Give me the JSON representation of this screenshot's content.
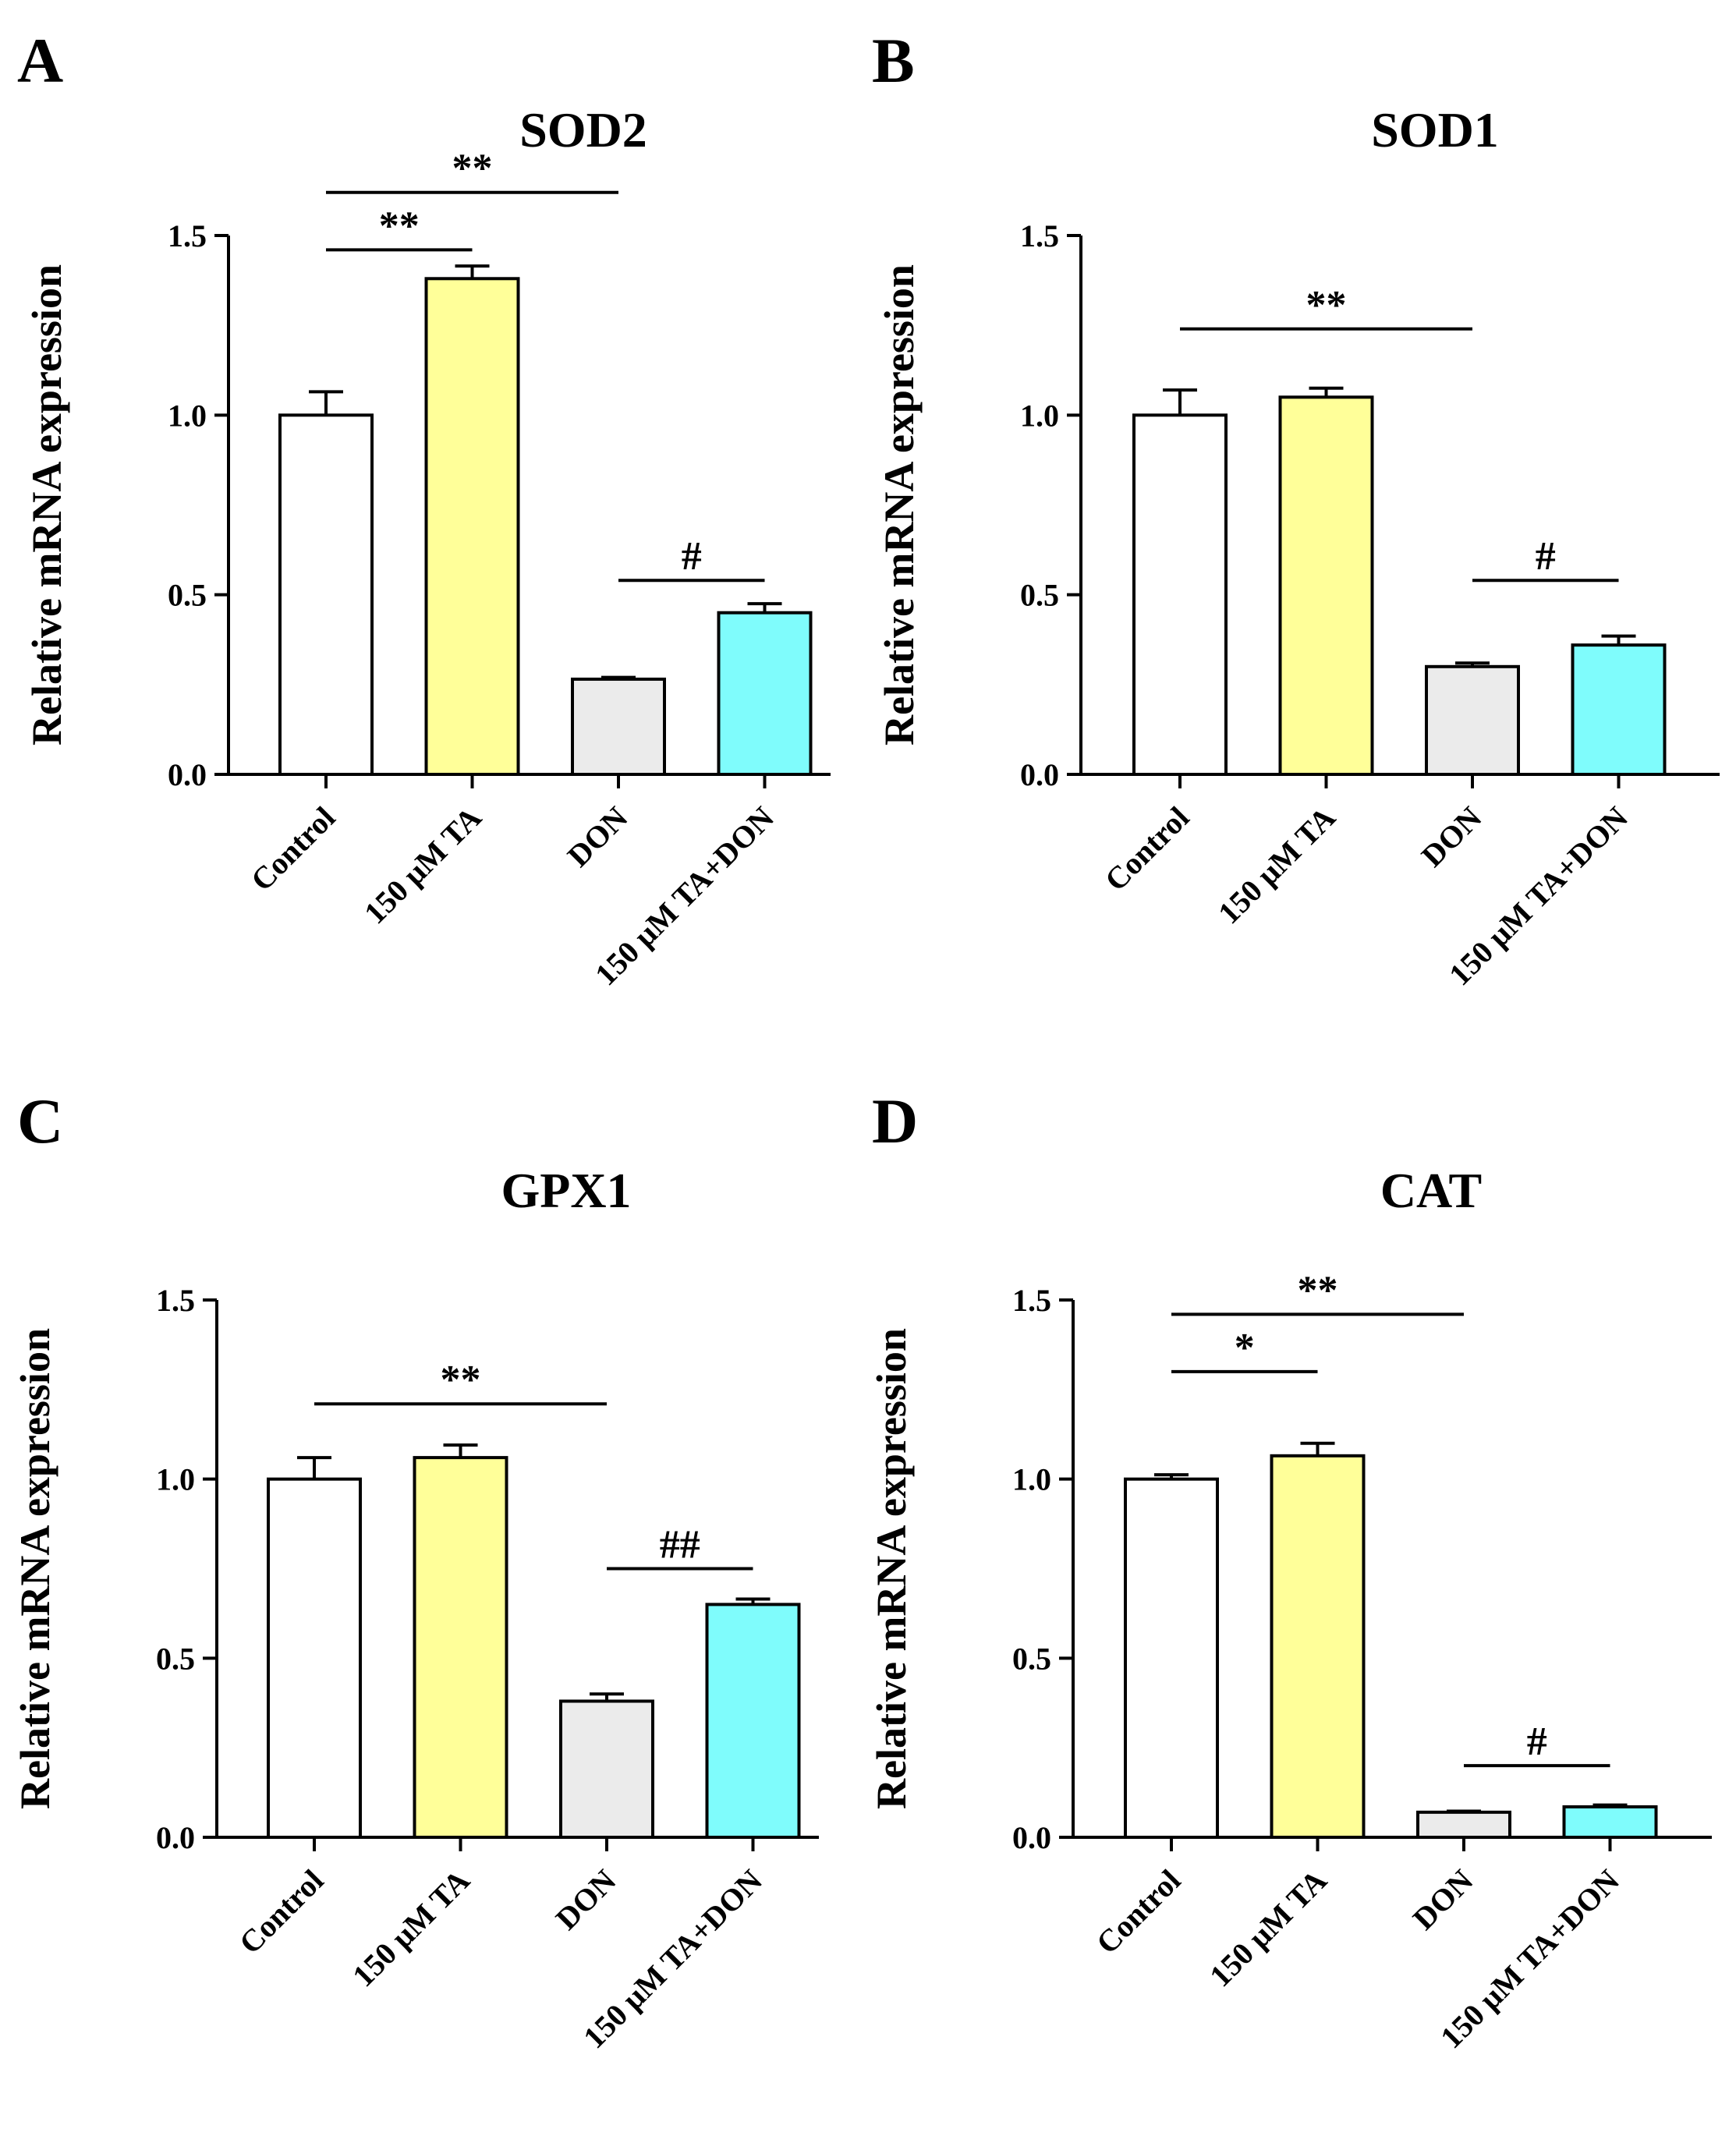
{
  "panels": [
    {
      "letter": "A",
      "chart_data": {
        "type": "bar",
        "title": "SOD2",
        "xlabel": "",
        "ylabel": "Relative mRNA expression",
        "categories": [
          "Control",
          "150 μM TA",
          "DON",
          "150 μM TA+DON"
        ],
        "values": [
          1.0,
          1.38,
          0.265,
          0.45
        ],
        "errors": [
          0.065,
          0.035,
          0.005,
          0.025
        ],
        "colors": [
          "#ffffff",
          "#ffff99",
          "#ebebeb",
          "#7ffcfc"
        ],
        "ylim": [
          0,
          1.5
        ],
        "yticks": [
          "0.0",
          "0.5",
          "1.0",
          "1.5"
        ],
        "significance": [
          {
            "from": 0,
            "to": 2,
            "label": "**",
            "level": 1.62
          },
          {
            "from": 0,
            "to": 1,
            "label": "**",
            "level": 1.46
          },
          {
            "from": 2,
            "to": 3,
            "label": "#",
            "level": 0.54
          }
        ]
      }
    },
    {
      "letter": "B",
      "chart_data": {
        "type": "bar",
        "title": "SOD1",
        "xlabel": "",
        "ylabel": "Relative mRNA expression",
        "categories": [
          "Control",
          "150 μM TA",
          "DON",
          "150 μM TA+DON"
        ],
        "values": [
          1.0,
          1.05,
          0.3,
          0.36
        ],
        "errors": [
          0.07,
          0.025,
          0.01,
          0.025
        ],
        "colors": [
          "#ffffff",
          "#ffff99",
          "#ebebeb",
          "#7ffcfc"
        ],
        "ylim": [
          0,
          1.5
        ],
        "yticks": [
          "0.0",
          "0.5",
          "1.0",
          "1.5"
        ],
        "significance": [
          {
            "from": 0,
            "to": 2,
            "label": "**",
            "level": 1.24
          },
          {
            "from": 2,
            "to": 3,
            "label": "#",
            "level": 0.54
          }
        ]
      }
    },
    {
      "letter": "C",
      "chart_data": {
        "type": "bar",
        "title": "GPX1",
        "xlabel": "",
        "ylabel": "Relative mRNA expression",
        "categories": [
          "Control",
          "150 μM TA",
          "DON",
          "150 μM TA+DON"
        ],
        "values": [
          1.0,
          1.06,
          0.38,
          0.65
        ],
        "errors": [
          0.06,
          0.035,
          0.02,
          0.015
        ],
        "colors": [
          "#ffffff",
          "#ffff99",
          "#ebebeb",
          "#7ffcfc"
        ],
        "ylim": [
          0,
          1.5
        ],
        "yticks": [
          "0.0",
          "0.5",
          "1.0",
          "1.5"
        ],
        "significance": [
          {
            "from": 0,
            "to": 2,
            "label": "**",
            "level": 1.21
          },
          {
            "from": 2,
            "to": 3,
            "label": "##",
            "level": 0.75
          }
        ]
      }
    },
    {
      "letter": "D",
      "chart_data": {
        "type": "bar",
        "title": "CAT",
        "xlabel": "",
        "ylabel": "Relative mRNA expression",
        "categories": [
          "Control",
          "150 μM TA",
          "DON",
          "150 μM TA+DON"
        ],
        "values": [
          1.0,
          1.065,
          0.07,
          0.085
        ],
        "errors": [
          0.012,
          0.035,
          0.003,
          0.005
        ],
        "colors": [
          "#ffffff",
          "#ffff99",
          "#ebebeb",
          "#7ffcfc"
        ],
        "ylim": [
          0,
          1.5
        ],
        "yticks": [
          "0.0",
          "0.5",
          "1.0",
          "1.5"
        ],
        "significance": [
          {
            "from": 0,
            "to": 2,
            "label": "**",
            "level": 1.46
          },
          {
            "from": 0,
            "to": 1,
            "label": "*",
            "level": 1.3
          },
          {
            "from": 2,
            "to": 3,
            "label": "#",
            "level": 0.2
          }
        ]
      }
    }
  ]
}
